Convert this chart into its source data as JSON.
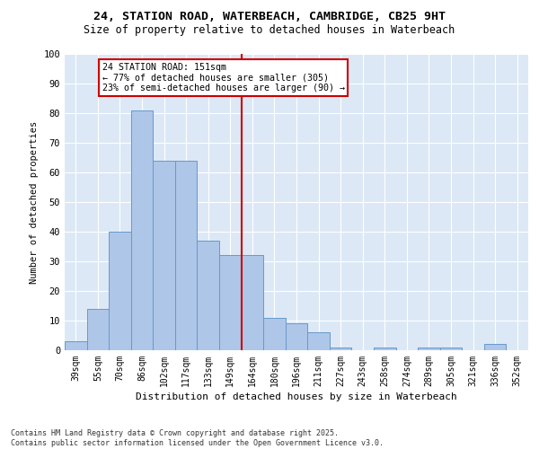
{
  "title_line1": "24, STATION ROAD, WATERBEACH, CAMBRIDGE, CB25 9HT",
  "title_line2": "Size of property relative to detached houses in Waterbeach",
  "xlabel": "Distribution of detached houses by size in Waterbeach",
  "ylabel": "Number of detached properties",
  "categories": [
    "39sqm",
    "55sqm",
    "70sqm",
    "86sqm",
    "102sqm",
    "117sqm",
    "133sqm",
    "149sqm",
    "164sqm",
    "180sqm",
    "196sqm",
    "211sqm",
    "227sqm",
    "243sqm",
    "258sqm",
    "274sqm",
    "289sqm",
    "305sqm",
    "321sqm",
    "336sqm",
    "352sqm"
  ],
  "values": [
    3,
    14,
    40,
    81,
    64,
    64,
    37,
    32,
    32,
    11,
    9,
    6,
    1,
    0,
    1,
    0,
    1,
    1,
    0,
    2,
    0
  ],
  "bar_color": "#aec6e8",
  "bar_edge_color": "#6699cc",
  "vline_x_index": 7.5,
  "vline_color": "#cc0000",
  "annotation_title": "24 STATION ROAD: 151sqm",
  "annotation_line1": "← 77% of detached houses are smaller (305)",
  "annotation_line2": "23% of semi-detached houses are larger (90) →",
  "annotation_box_color": "#cc0000",
  "ylim": [
    0,
    100
  ],
  "yticks": [
    0,
    10,
    20,
    30,
    40,
    50,
    60,
    70,
    80,
    90,
    100
  ],
  "background_color": "#dce8f5",
  "footer_line1": "Contains HM Land Registry data © Crown copyright and database right 2025.",
  "footer_line2": "Contains public sector information licensed under the Open Government Licence v3.0."
}
